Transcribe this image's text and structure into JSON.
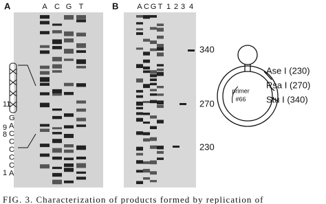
{
  "panel_a": {
    "label": "A",
    "lanes": [
      "A",
      "C",
      "G",
      "T"
    ],
    "sequence_numbers": [
      "11",
      "9",
      "8",
      "1"
    ],
    "sequence_letters": [
      "G",
      "A",
      "C",
      "C",
      "C",
      "C",
      "C",
      "A"
    ]
  },
  "panel_b": {
    "label": "B",
    "lanes": [
      "A",
      "C",
      "G",
      "T",
      "1",
      "2",
      "3",
      "4"
    ],
    "markers": [
      "340",
      "270",
      "230"
    ]
  },
  "diagram": {
    "sites": [
      "Ase I (230)",
      "Rsa I (270)",
      "Stu I (340)"
    ],
    "primer": [
      "primer",
      "#66"
    ]
  },
  "caption": "FIG. 3. Characterization of products formed by replication of"
}
